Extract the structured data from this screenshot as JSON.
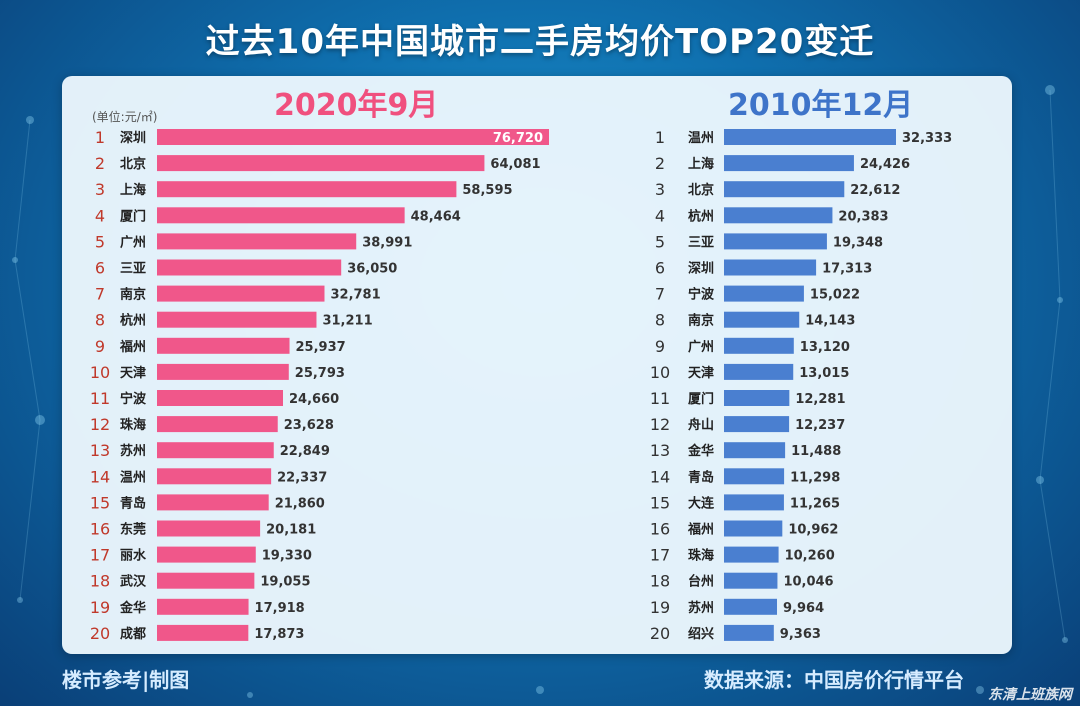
{
  "title": "过去10年中国城市二手房均价TOP20变迁",
  "unit_label": "(单位:元/㎡)",
  "footer": {
    "left": "楼市参考|制图",
    "right": "数据来源：中国房价行情平台"
  },
  "site_watermark": "东清上班族网",
  "colors": {
    "left_bar": "#f0578a",
    "right_bar": "#4a7fd0",
    "left_rank": "#c0392b",
    "right_rank": "#333333"
  },
  "chart_data": [
    {
      "type": "bar",
      "title": "2020年9月",
      "orientation": "horizontal",
      "ranks": [
        "1",
        "2",
        "3",
        "4",
        "5",
        "6",
        "7",
        "8",
        "9",
        "10",
        "11",
        "12",
        "13",
        "14",
        "15",
        "16",
        "17",
        "18",
        "19",
        "20"
      ],
      "categories": [
        "深圳",
        "北京",
        "上海",
        "厦门",
        "广州",
        "三亚",
        "南京",
        "杭州",
        "福州",
        "天津",
        "宁波",
        "珠海",
        "苏州",
        "温州",
        "青岛",
        "东莞",
        "丽水",
        "武汉",
        "金华",
        "成都"
      ],
      "values": [
        76720,
        64081,
        58595,
        48464,
        38991,
        36050,
        32781,
        31211,
        25937,
        25793,
        24660,
        23628,
        22849,
        22337,
        21860,
        20181,
        19330,
        19055,
        17918,
        17873
      ],
      "labels": [
        "76,720",
        "64,081",
        "58,595",
        "48,464",
        "38,991",
        "36,050",
        "32,781",
        "31,211",
        "25,937",
        "25,793",
        "24,660",
        "23,628",
        "22,849",
        "22,337",
        "21,860",
        "20,181",
        "19,330",
        "19,055",
        "17,918",
        "17,873"
      ]
    },
    {
      "type": "bar",
      "title": "2010年12月",
      "orientation": "horizontal",
      "ranks": [
        "1",
        "2",
        "3",
        "4",
        "5",
        "6",
        "7",
        "8",
        "9",
        "10",
        "11",
        "12",
        "13",
        "14",
        "15",
        "16",
        "17",
        "18",
        "19",
        "20"
      ],
      "categories": [
        "温州",
        "上海",
        "北京",
        "杭州",
        "三亚",
        "深圳",
        "宁波",
        "南京",
        "广州",
        "天津",
        "厦门",
        "舟山",
        "金华",
        "青岛",
        "大连",
        "福州",
        "珠海",
        "台州",
        "苏州",
        "绍兴"
      ],
      "values": [
        32333,
        24426,
        22612,
        20383,
        19348,
        17313,
        15022,
        14143,
        13120,
        13015,
        12281,
        12237,
        11488,
        11298,
        11265,
        10962,
        10260,
        10046,
        9964,
        9363
      ],
      "labels": [
        "32,333",
        "24,426",
        "22,612",
        "20,383",
        "19,348",
        "17,313",
        "15,022",
        "14,143",
        "13,120",
        "13,015",
        "12,281",
        "12,237",
        "11,488",
        "11,298",
        "11,265",
        "10,962",
        "10,260",
        "10,046",
        "9,964",
        "9,363"
      ]
    }
  ]
}
